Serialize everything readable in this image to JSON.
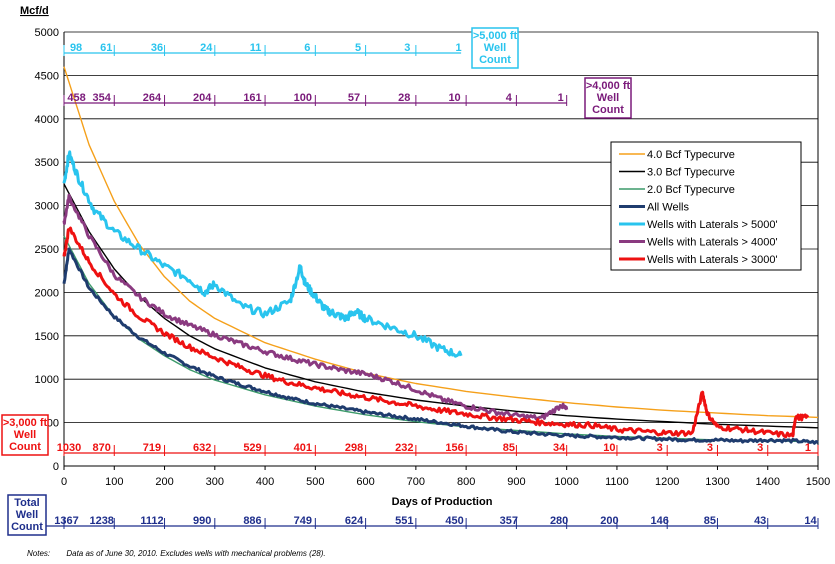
{
  "y_unit_label": "Mcf/d",
  "notes_label": "Notes:",
  "notes_text": "Data as of June 30, 2010. Excludes wells with mechanical problems (28).",
  "colors": {
    "typecurve_4": "#f5a01a",
    "typecurve_3": "#000000",
    "typecurve_2": "#3c9a6a",
    "all_wells": "#1f3c6e",
    "laterals_5000": "#29c4ee",
    "laterals_4000": "#8a3a80",
    "laterals_3000": "#ee1111",
    "count_5000": "#29c4ee",
    "count_4000": "#7a1a7a",
    "count_3000": "#ee1111",
    "count_total": "#1f2f8c"
  },
  "count_rows": [
    {
      "id": "c5000",
      "label": ">5,000 ft Well Count",
      "label_lines": [
        ">5,000 ft",
        "Well",
        "Count"
      ],
      "color": "#29c4ee",
      "values": [
        "98",
        "61",
        "36",
        "24",
        "11",
        "6",
        "5",
        "3",
        "1"
      ],
      "days": [
        24,
        84,
        185,
        283,
        381,
        484,
        585,
        683,
        785
      ],
      "max_day": 790
    },
    {
      "id": "c4000",
      "label": ">4,000 ft Well Count",
      "label_lines": [
        ">4,000 ft",
        "Well",
        "Count"
      ],
      "color": "#7a1a7a",
      "values": [
        "458",
        "354",
        "264",
        "204",
        "161",
        "100",
        "57",
        "28",
        "10",
        "4",
        "1"
      ],
      "days": [
        25,
        75,
        175,
        275,
        375,
        475,
        577,
        677,
        777,
        885,
        988
      ],
      "max_day": 1000
    },
    {
      "id": "c3000",
      "label": ">3,000 ft Well Count",
      "label_lines": [
        ">3,000 ft",
        "Well",
        "Count"
      ],
      "color": "#ee1111",
      "values": [
        "1030",
        "870",
        "719",
        "632",
        "529",
        "401",
        "298",
        "232",
        "156",
        "85",
        "34",
        "10",
        "3",
        "3",
        "3",
        "1"
      ],
      "days": [
        10,
        75,
        175,
        275,
        375,
        475,
        577,
        677,
        777,
        885,
        985,
        1085,
        1185,
        1285,
        1385,
        1480
      ],
      "max_day": 1500
    },
    {
      "id": "ctotal",
      "label": "Total Well Count",
      "label_lines": [
        "Total",
        "Well",
        "Count"
      ],
      "color": "#1f2f8c",
      "values": [
        "1367",
        "1238",
        "1112",
        "990",
        "886",
        "749",
        "624",
        "551",
        "450",
        "357",
        "280",
        "200",
        "146",
        "85",
        "43",
        "14"
      ],
      "days": [
        5,
        75,
        175,
        275,
        375,
        475,
        577,
        677,
        777,
        885,
        985,
        1085,
        1185,
        1285,
        1385,
        1485
      ],
      "max_day": 1500
    }
  ],
  "chart_data": {
    "type": "line",
    "title": "",
    "xlabel": "Days of Production",
    "ylabel": "Mcf/d",
    "xlim": [
      0,
      1500
    ],
    "ylim": [
      0,
      5000
    ],
    "x_ticks": [
      0,
      100,
      200,
      300,
      400,
      500,
      600,
      700,
      800,
      900,
      1000,
      1100,
      1200,
      1300,
      1400,
      1500
    ],
    "y_ticks": [
      0,
      500,
      1000,
      1500,
      2000,
      2500,
      3000,
      3500,
      4000,
      4500,
      5000
    ],
    "grid": "horizontal",
    "legend_position": "right",
    "series": [
      {
        "name": "4.0 Bcf Typecurve",
        "color": "#f5a01a",
        "x": [
          0,
          50,
          100,
          150,
          200,
          250,
          300,
          400,
          500,
          600,
          700,
          800,
          900,
          1000,
          1100,
          1200,
          1300,
          1400,
          1500
        ],
        "y": [
          4600,
          3700,
          3050,
          2550,
          2180,
          1900,
          1700,
          1420,
          1230,
          1070,
          950,
          860,
          790,
          730,
          680,
          640,
          610,
          580,
          560
        ]
      },
      {
        "name": "3.0 Bcf Typecurve",
        "color": "#000000",
        "x": [
          0,
          50,
          100,
          150,
          200,
          250,
          300,
          400,
          500,
          600,
          700,
          800,
          900,
          1000,
          1100,
          1200,
          1300,
          1400,
          1500
        ],
        "y": [
          3250,
          2700,
          2270,
          1950,
          1700,
          1500,
          1350,
          1130,
          970,
          850,
          760,
          690,
          630,
          580,
          540,
          510,
          480,
          460,
          440
        ]
      },
      {
        "name": "2.0 Bcf Typecurve",
        "color": "#3c9a6a",
        "x": [
          0,
          50,
          100,
          150,
          200,
          250,
          300,
          400,
          500,
          600,
          700,
          800,
          900,
          1000,
          1100,
          1200,
          1300,
          1400,
          1500
        ],
        "y": [
          2650,
          2100,
          1720,
          1460,
          1270,
          1110,
          990,
          820,
          690,
          590,
          510,
          450,
          410,
          370,
          340,
          320,
          300,
          290,
          280
        ]
      },
      {
        "name": "All Wells",
        "color": "#1f3c6e",
        "x": [
          0,
          10,
          50,
          100,
          150,
          200,
          250,
          300,
          350,
          400,
          450,
          500,
          550,
          600,
          650,
          700,
          750,
          800,
          850,
          900,
          950,
          1000,
          1050,
          1100,
          1150,
          1200,
          1250,
          1300,
          1350,
          1400,
          1450,
          1500
        ],
        "y": [
          2100,
          2500,
          2050,
          1720,
          1480,
          1300,
          1150,
          1030,
          940,
          860,
          780,
          720,
          670,
          620,
          580,
          540,
          500,
          460,
          420,
          390,
          370,
          350,
          340,
          330,
          320,
          310,
          300,
          300,
          290,
          300,
          290,
          270
        ]
      },
      {
        "name": "Wells with Laterals > 5000'",
        "color": "#29c4ee",
        "x": [
          0,
          10,
          30,
          60,
          100,
          150,
          200,
          250,
          280,
          300,
          350,
          400,
          450,
          470,
          480,
          500,
          520,
          540,
          560,
          580,
          600,
          650,
          700,
          750,
          790
        ],
        "y": [
          3250,
          3600,
          3300,
          2950,
          2700,
          2500,
          2300,
          2150,
          2000,
          2100,
          1850,
          1750,
          1900,
          2300,
          2100,
          1950,
          1800,
          1750,
          1700,
          1780,
          1700,
          1600,
          1500,
          1350,
          1270
        ]
      },
      {
        "name": "Wells with Laterals > 4000'",
        "color": "#8a3a80",
        "x": [
          0,
          10,
          50,
          100,
          150,
          200,
          250,
          300,
          350,
          400,
          450,
          500,
          550,
          600,
          650,
          700,
          750,
          800,
          850,
          900,
          950,
          990,
          1000
        ],
        "y": [
          2800,
          3100,
          2650,
          2200,
          1950,
          1750,
          1620,
          1510,
          1410,
          1320,
          1240,
          1170,
          1110,
          1060,
          980,
          880,
          770,
          690,
          630,
          580,
          550,
          700,
          650
        ]
      },
      {
        "name": "Wells with Laterals > 3000'",
        "color": "#ee1111",
        "x": [
          0,
          10,
          50,
          100,
          150,
          200,
          250,
          300,
          350,
          400,
          450,
          500,
          550,
          600,
          650,
          700,
          750,
          800,
          850,
          900,
          950,
          1000,
          1050,
          1100,
          1150,
          1200,
          1250,
          1270,
          1280,
          1300,
          1350,
          1400,
          1450,
          1455,
          1480
        ],
        "y": [
          2400,
          2750,
          2350,
          1980,
          1720,
          1530,
          1370,
          1250,
          1140,
          1040,
          960,
          900,
          840,
          790,
          740,
          690,
          640,
          600,
          560,
          530,
          500,
          480,
          470,
          420,
          400,
          380,
          380,
          850,
          600,
          450,
          420,
          380,
          350,
          560,
          560
        ]
      }
    ]
  }
}
